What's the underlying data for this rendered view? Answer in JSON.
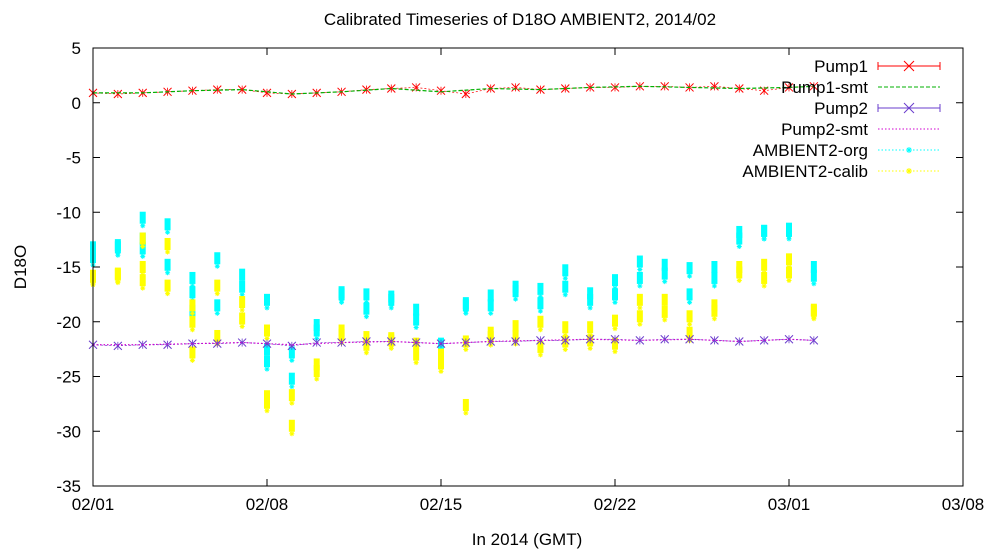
{
  "chart_data": {
    "type": "scatter",
    "title": "Calibrated Timeseries of D18O AMBIENT2, 2014/02",
    "xlabel": "In 2014 (GMT)",
    "ylabel": "D18O",
    "x_range": [
      "2014-02-01",
      "2014-03-08"
    ],
    "x_ticks": [
      "02/01",
      "02/08",
      "02/15",
      "02/22",
      "03/01",
      "03/08"
    ],
    "ylim": [
      -35,
      5
    ],
    "y_ticks": [
      "5",
      "0",
      "-5",
      "-10",
      "-15",
      "-20",
      "-25",
      "-30",
      "-35"
    ],
    "grid": false,
    "legend_position": "top-right",
    "series": [
      {
        "name": "Pump1",
        "color": "#ff0000",
        "marker": "x",
        "style": "points-errorbars",
        "x": [
          "02/01",
          "02/02",
          "02/03",
          "02/04",
          "02/05",
          "02/06",
          "02/07",
          "02/08",
          "02/09",
          "02/10",
          "02/11",
          "02/12",
          "02/13",
          "02/14",
          "02/15",
          "02/16",
          "02/17",
          "02/18",
          "02/19",
          "02/20",
          "02/21",
          "02/22",
          "02/23",
          "02/24",
          "02/25",
          "02/26",
          "02/27",
          "02/28",
          "03/01",
          "03/02"
        ],
        "y": [
          0.9,
          0.8,
          0.9,
          1.0,
          1.1,
          1.2,
          1.2,
          0.9,
          0.8,
          0.9,
          1.0,
          1.2,
          1.3,
          1.4,
          1.1,
          0.8,
          1.3,
          1.4,
          1.2,
          1.3,
          1.4,
          1.4,
          1.5,
          1.5,
          1.4,
          1.5,
          1.3,
          1.1,
          1.4,
          1.5
        ]
      },
      {
        "name": "Pump1-smt",
        "color": "#00b000",
        "marker": "none",
        "style": "dashed-line",
        "x": [
          "02/01",
          "02/03",
          "02/05",
          "02/07",
          "02/09",
          "02/11",
          "02/13",
          "02/15",
          "02/17",
          "02/19",
          "02/21",
          "02/23",
          "02/25",
          "02/27",
          "03/01",
          "03/02"
        ],
        "y": [
          0.9,
          0.9,
          1.1,
          1.2,
          0.8,
          1.0,
          1.3,
          1.0,
          1.3,
          1.2,
          1.4,
          1.5,
          1.4,
          1.3,
          1.4,
          1.5
        ]
      },
      {
        "name": "Pump2",
        "color": "#6a3ccc",
        "marker": "x",
        "style": "points-errorbars",
        "x": [
          "02/01",
          "02/02",
          "02/03",
          "02/04",
          "02/05",
          "02/06",
          "02/07",
          "02/08",
          "02/09",
          "02/10",
          "02/11",
          "02/12",
          "02/13",
          "02/14",
          "02/15",
          "02/16",
          "02/17",
          "02/18",
          "02/19",
          "02/20",
          "02/21",
          "02/22",
          "02/23",
          "02/24",
          "02/25",
          "02/26",
          "02/27",
          "02/28",
          "03/01",
          "03/02"
        ],
        "y": [
          -22.1,
          -22.2,
          -22.1,
          -22.1,
          -22.0,
          -22.0,
          -21.9,
          -22.0,
          -22.2,
          -21.9,
          -21.9,
          -21.8,
          -21.8,
          -21.9,
          -22.0,
          -21.9,
          -21.8,
          -21.8,
          -21.7,
          -21.7,
          -21.6,
          -21.6,
          -21.7,
          -21.6,
          -21.6,
          -21.7,
          -21.8,
          -21.7,
          -21.6,
          -21.7
        ]
      },
      {
        "name": "Pump2-smt",
        "color": "#d000d0",
        "marker": "none",
        "style": "dotted-line",
        "x": [
          "02/01",
          "02/03",
          "02/05",
          "02/07",
          "02/09",
          "02/11",
          "02/13",
          "02/15",
          "02/17",
          "02/19",
          "02/21",
          "02/23",
          "02/25",
          "02/27",
          "03/01",
          "03/02"
        ],
        "y": [
          -22.1,
          -22.1,
          -22.0,
          -21.9,
          -22.1,
          -21.9,
          -21.8,
          -22.0,
          -21.8,
          -21.7,
          -21.6,
          -21.7,
          -21.6,
          -21.8,
          -21.6,
          -21.7
        ]
      },
      {
        "name": "AMBIENT2-org",
        "color": "#00ffff",
        "marker": "star",
        "style": "clusters",
        "x": [
          "02/01",
          "02/01",
          "02/02",
          "02/02",
          "02/03",
          "02/03",
          "02/03",
          "02/04",
          "02/04",
          "02/05",
          "02/05",
          "02/05",
          "02/06",
          "02/06",
          "02/07",
          "02/07",
          "02/08",
          "02/08",
          "02/08",
          "02/09",
          "02/09",
          "02/10",
          "02/10",
          "02/11",
          "02/11",
          "02/12",
          "02/12",
          "02/13",
          "02/13",
          "02/14",
          "02/14",
          "02/15",
          "02/15",
          "02/16",
          "02/16",
          "02/17",
          "02/17",
          "02/18",
          "02/18",
          "02/19",
          "02/19",
          "02/20",
          "02/20",
          "02/21",
          "02/21",
          "02/22",
          "02/22",
          "02/23",
          "02/23",
          "02/24",
          "02/24",
          "02/25",
          "02/25",
          "02/26",
          "02/26",
          "02/27",
          "02/27",
          "02/28",
          "02/28",
          "03/01",
          "03/01",
          "03/02",
          "03/02"
        ],
        "y": [
          -13.2,
          -14.1,
          -13.0,
          -13.2,
          -12.4,
          -13.3,
          -10.5,
          -11.1,
          -14.8,
          -19.0,
          -16.0,
          -17.3,
          -18.5,
          -14.2,
          -15.7,
          -16.8,
          -18.0,
          -22.5,
          -23.6,
          -25.2,
          -22.8,
          -20.3,
          -20.8,
          -17.3,
          -17.5,
          -17.5,
          -18.8,
          -17.7,
          -18.0,
          -18.9,
          -19.8,
          -22.0,
          -22.8,
          -18.3,
          -18.5,
          -18.5,
          -17.6,
          -17.2,
          -16.8,
          -18.3,
          -17.0,
          -15.3,
          -16.8,
          -17.4,
          -18.0,
          -17.5,
          -16.2,
          -14.5,
          -16.0,
          -14.8,
          -15.6,
          -15.1,
          -17.5,
          -15.0,
          -16.0,
          -11.8,
          -12.4,
          -11.7,
          -11.7,
          -11.5,
          -11.7,
          -15.0,
          -15.8
        ]
      },
      {
        "name": "AMBIENT2-calib",
        "color": "#ffff00",
        "marker": "star",
        "style": "clusters",
        "x": [
          "02/01",
          "02/01",
          "02/02",
          "02/02",
          "02/03",
          "02/03",
          "02/03",
          "02/04",
          "02/04",
          "02/05",
          "02/05",
          "02/05",
          "02/06",
          "02/06",
          "02/07",
          "02/07",
          "02/08",
          "02/08",
          "02/08",
          "02/09",
          "02/09",
          "02/10",
          "02/10",
          "02/11",
          "02/11",
          "02/12",
          "02/12",
          "02/13",
          "02/13",
          "02/14",
          "02/14",
          "02/15",
          "02/15",
          "02/16",
          "02/16",
          "02/17",
          "02/17",
          "02/18",
          "02/18",
          "02/19",
          "02/19",
          "02/20",
          "02/20",
          "02/21",
          "02/21",
          "02/22",
          "02/22",
          "02/23",
          "02/23",
          "02/24",
          "02/24",
          "02/25",
          "02/25",
          "02/26",
          "02/26",
          "02/27",
          "02/27",
          "02/28",
          "02/28",
          "03/01",
          "03/01",
          "03/02",
          "03/02"
        ],
        "y": [
          -15.8,
          -15.9,
          -15.6,
          -15.7,
          -15.0,
          -16.2,
          -12.4,
          -12.9,
          -16.7,
          -22.8,
          -18.5,
          -20.0,
          -21.3,
          -16.7,
          -18.2,
          -19.7,
          -20.8,
          -26.8,
          -27.4,
          -29.5,
          -26.7,
          -23.9,
          -24.5,
          -21.2,
          -20.8,
          -21.4,
          -22.1,
          -21.5,
          -21.7,
          -22.0,
          -23.0,
          -23.0,
          -23.8,
          -27.6,
          -21.8,
          -21.4,
          -21.0,
          -20.4,
          -21.3,
          -20.0,
          -22.3,
          -20.5,
          -21.8,
          -21.7,
          -20.5,
          -22.0,
          -19.9,
          -18.0,
          -19.5,
          -18.0,
          -19.1,
          -19.5,
          -21.0,
          -18.5,
          -19.0,
          -15.0,
          -15.5,
          -14.8,
          -16.0,
          -14.3,
          -15.5,
          -18.9,
          -19.0
        ]
      }
    ]
  }
}
